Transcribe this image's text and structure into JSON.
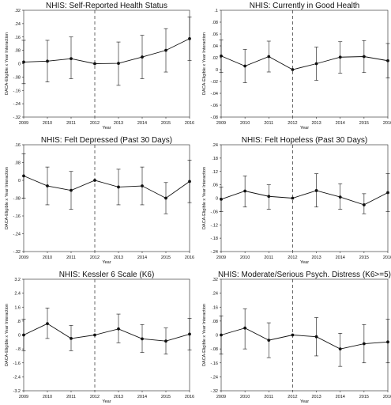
{
  "chart_data": [
    {
      "type": "line",
      "title": "NHIS: Self-Reported Health Status",
      "xlabel": "Year",
      "ylabel": "DACA-Eligible x Year Interaction",
      "x": [
        2009,
        2010,
        2011,
        2012,
        2013,
        2014,
        2015,
        2016
      ],
      "y_ticks": [
        ".32",
        ".24",
        ".16",
        ".08",
        "0",
        "-.08",
        "-.16",
        "-.24",
        "-.32"
      ],
      "ylim": [
        -0.32,
        0.32
      ],
      "reference_year": 2012,
      "series": [
        {
          "values": [
            0.01,
            0.015,
            0.03,
            0.0,
            0.002,
            0.04,
            0.08,
            0.15
          ],
          "ci_low": [
            -0.12,
            -0.11,
            -0.09,
            0.0,
            -0.13,
            -0.09,
            -0.05,
            0.02
          ],
          "ci_high": [
            0.14,
            0.14,
            0.16,
            0.0,
            0.13,
            0.17,
            0.21,
            0.28
          ]
        }
      ]
    },
    {
      "type": "line",
      "title": "NHIS: Currently in Good Health",
      "xlabel": "Year",
      "ylabel": "DACA-Eligible x Year Interaction",
      "x": [
        2009,
        2010,
        2011,
        2012,
        2013,
        2014,
        2015,
        2016
      ],
      "y_ticks": [
        ".1",
        ".08",
        ".06",
        ".04",
        ".02",
        "0",
        "-.02",
        "-.04",
        "-.06",
        "-.08"
      ],
      "ylim": [
        -0.08,
        0.1
      ],
      "reference_year": 2012,
      "series": [
        {
          "values": [
            0.023,
            0.006,
            0.022,
            0.0,
            0.01,
            0.021,
            0.022,
            0.015
          ],
          "ci_low": [
            -0.005,
            -0.022,
            -0.004,
            0.0,
            -0.018,
            -0.006,
            -0.005,
            -0.014
          ],
          "ci_high": [
            0.05,
            0.034,
            0.048,
            0.0,
            0.038,
            0.047,
            0.049,
            0.044
          ]
        }
      ]
    },
    {
      "type": "line",
      "title": "NHIS: Felt Depressed (Past 30 Days)",
      "xlabel": "Year",
      "ylabel": "DACA-Eligible x Year Interaction",
      "x": [
        2009,
        2010,
        2011,
        2012,
        2013,
        2014,
        2015,
        2016
      ],
      "y_ticks": [
        ".16",
        ".08",
        "0",
        "-.08",
        "-.16",
        "-.24",
        "-.32"
      ],
      "ylim": [
        -0.32,
        0.16
      ],
      "reference_year": 2012,
      "series": [
        {
          "values": [
            0.02,
            -0.025,
            -0.045,
            0.0,
            -0.03,
            -0.025,
            -0.08,
            -0.005
          ],
          "ci_low": [
            -0.08,
            -0.11,
            -0.13,
            0.0,
            -0.11,
            -0.11,
            -0.15,
            -0.1
          ],
          "ci_high": [
            0.12,
            0.06,
            0.04,
            0.0,
            0.05,
            0.06,
            -0.01,
            0.09
          ]
        }
      ]
    },
    {
      "type": "line",
      "title": "NHIS: Felt Hopeless (Past 30 Days)",
      "xlabel": "Year",
      "ylabel": "DACA-Eligible x Year Interaction",
      "x": [
        2009,
        2010,
        2011,
        2012,
        2013,
        2014,
        2015,
        2016
      ],
      "y_ticks": [
        ".24",
        ".18",
        ".12",
        ".06",
        "0",
        "-.06",
        "-.12",
        "-.18",
        "-.24"
      ],
      "ylim": [
        -0.24,
        0.24
      ],
      "reference_year": 2012,
      "series": [
        {
          "values": [
            -0.005,
            0.032,
            0.008,
            0.0,
            0.034,
            0.005,
            -0.03,
            0.025
          ],
          "ci_low": [
            -0.06,
            -0.04,
            -0.05,
            0.0,
            -0.04,
            -0.05,
            -0.07,
            -0.06
          ],
          "ci_high": [
            0.05,
            0.1,
            0.06,
            0.0,
            0.11,
            0.065,
            0.02,
            0.11
          ]
        }
      ]
    },
    {
      "type": "line",
      "title": "NHIS: Kessler 6 Scale (K6)",
      "xlabel": "Year",
      "ylabel": "DACA-Eligible x Year Interaction",
      "x": [
        2009,
        2010,
        2011,
        2012,
        2013,
        2014,
        2015,
        2016
      ],
      "y_ticks": [
        "3.2",
        "2.4",
        "1.6",
        ".8",
        "0",
        "-.8",
        "-1.6",
        "-2.4",
        "-3.2"
      ],
      "ylim": [
        -3.2,
        3.2
      ],
      "reference_year": 2012,
      "series": [
        {
          "values": [
            0.0,
            0.65,
            -0.2,
            0.0,
            0.35,
            -0.22,
            -0.35,
            0.05
          ],
          "ci_low": [
            -0.9,
            -0.2,
            -0.9,
            0.0,
            -0.45,
            -1.0,
            -1.1,
            -0.85
          ],
          "ci_high": [
            0.9,
            1.55,
            0.55,
            0.0,
            1.2,
            0.6,
            0.4,
            0.95
          ]
        }
      ]
    },
    {
      "type": "line",
      "title": "NHIS: Moderate/Serious Psych. Distress (K6>=5)",
      "xlabel": "Year",
      "ylabel": "DACA-Eligible x Year Interaction",
      "x": [
        2009,
        2010,
        2011,
        2012,
        2013,
        2014,
        2015,
        2016
      ],
      "y_ticks": [
        ".32",
        ".24",
        ".16",
        ".08",
        "0",
        "-.08",
        "-.16",
        "-.24",
        "-.32"
      ],
      "ylim": [
        -0.32,
        0.32
      ],
      "reference_year": 2012,
      "series": [
        {
          "values": [
            0.0,
            0.04,
            -0.03,
            0.0,
            -0.01,
            -0.08,
            -0.05,
            -0.04
          ],
          "ci_low": [
            -0.11,
            -0.08,
            -0.13,
            0.0,
            -0.12,
            -0.18,
            -0.16,
            -0.16
          ],
          "ci_high": [
            0.11,
            0.15,
            0.07,
            0.0,
            0.1,
            0.01,
            0.06,
            0.09
          ]
        }
      ]
    }
  ]
}
